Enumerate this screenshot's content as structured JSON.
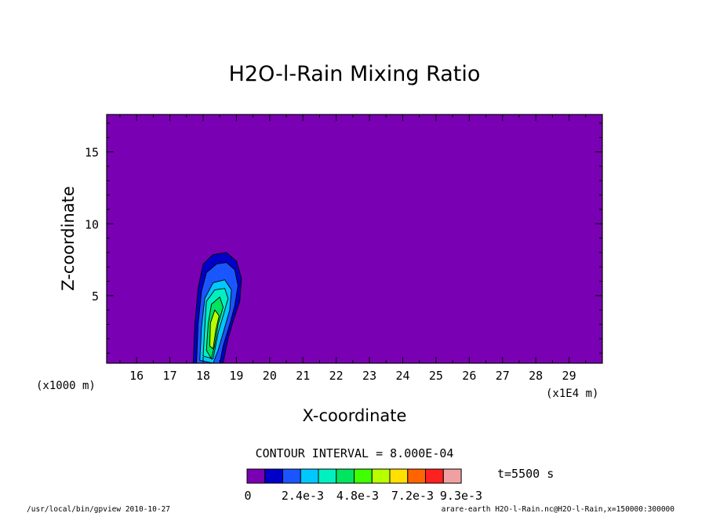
{
  "chart_data": {
    "type": "heatmap",
    "title": "H2O-l-Rain Mixing Ratio",
    "xlabel": "X-coordinate",
    "ylabel": "Z-coordinate",
    "x_unit_left": "(x1000 m)",
    "x_unit_right": "(x1E4 m)",
    "xlim": [
      15.1,
      30.0
    ],
    "ylim": [
      0.3,
      17.6
    ],
    "x_ticks": [
      "16",
      "17",
      "18",
      "19",
      "20",
      "21",
      "22",
      "23",
      "24",
      "25",
      "26",
      "27",
      "28",
      "29"
    ],
    "y_ticks": [
      "5",
      "10",
      "15"
    ],
    "contour_interval_text": "CONTOUR INTERVAL = 8.000E-04",
    "time_text": "t=5500 s",
    "colorbar": {
      "colors": [
        "#7a00b4",
        "#0000c8",
        "#1a56ff",
        "#00c8ff",
        "#00f0c0",
        "#00e460",
        "#40ff00",
        "#b8ff00",
        "#ffe000",
        "#ff6400",
        "#ff2020",
        "#f0a0a0"
      ],
      "labels": [
        "0",
        "2.4e-3",
        "4.8e-3",
        "7.2e-3",
        "9.3e-3"
      ]
    },
    "footer_left": "/usr/local/bin/gpview  2010-10-27",
    "footer_right": "arare-earth_H2O-l-Rain.nc@H2O-l-Rain,x=150000:300000"
  }
}
